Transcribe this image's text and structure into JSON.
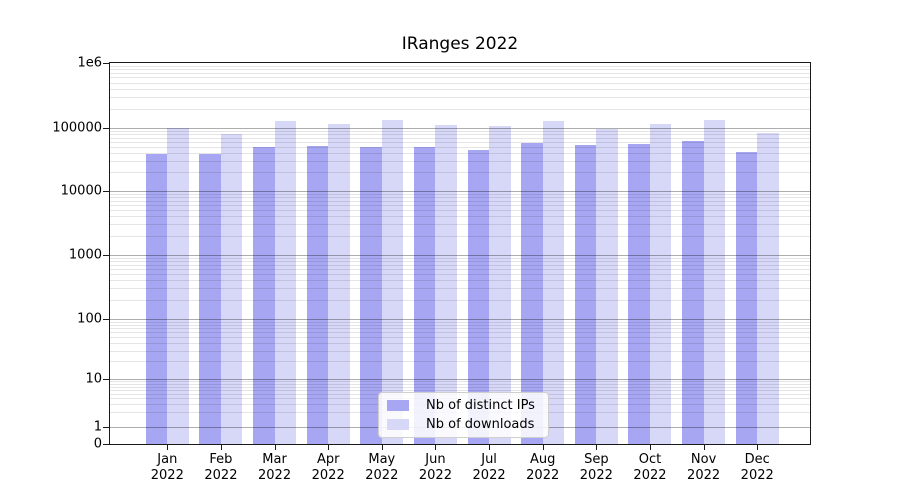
{
  "title": "IRanges 2022",
  "colors": {
    "distinct_ips": "#a6a6f2",
    "downloads": "#d7d7f8",
    "grid_major": "rgba(0,0,0,0.32)",
    "grid_minor": "rgba(0,0,0,0.10)",
    "axis": "#1a1a1a"
  },
  "y_axis": {
    "ticks": [
      {
        "label": "1e6",
        "value": 1000000,
        "y": 0
      },
      {
        "label": "100000",
        "value": 100000,
        "y": 65.3
      },
      {
        "label": "10000",
        "value": 10000,
        "y": 128
      },
      {
        "label": "1000",
        "value": 1000,
        "y": 192
      },
      {
        "label": "100",
        "value": 100,
        "y": 256
      },
      {
        "label": "10",
        "value": 10,
        "y": 316.3
      },
      {
        "label": "1",
        "value": 1,
        "y": 363.7
      },
      {
        "label": "0",
        "value": 0,
        "y": 381
      }
    ]
  },
  "x_axis": {
    "months": [
      "Jan",
      "Feb",
      "Mar",
      "Apr",
      "May",
      "Jun",
      "Jul",
      "Aug",
      "Sep",
      "Oct",
      "Nov",
      "Dec"
    ],
    "year": "2022"
  },
  "legend": {
    "items": [
      {
        "label": "Nb of distinct IPs",
        "color_key": "distinct_ips"
      },
      {
        "label": "Nb of downloads",
        "color_key": "downloads"
      }
    ]
  },
  "chart_data": {
    "type": "bar",
    "title": "IRanges 2022",
    "categories": [
      "Jan 2022",
      "Feb 2022",
      "Mar 2022",
      "Apr 2022",
      "May 2022",
      "Jun 2022",
      "Jul 2022",
      "Aug 2022",
      "Sep 2022",
      "Oct 2022",
      "Nov 2022",
      "Dec 2022"
    ],
    "series": [
      {
        "name": "Nb of distinct IPs",
        "values": [
          40000,
          40000,
          51000,
          52000,
          50000,
          50000,
          45000,
          58000,
          55000,
          57000,
          64000,
          43000
        ]
      },
      {
        "name": "Nb of downloads",
        "values": [
          100000,
          81000,
          131000,
          119000,
          137000,
          112000,
          109000,
          130000,
          99000,
          117000,
          137000,
          83000
        ]
      }
    ],
    "xlabel": "",
    "ylabel": "",
    "yscale": "log (symlog-style axis including 0)",
    "ylim": [
      0,
      1000000
    ],
    "yticks": [
      0,
      1,
      10,
      100,
      1000,
      10000,
      100000,
      1000000
    ],
    "grid": true,
    "legend_position": "lower center"
  }
}
